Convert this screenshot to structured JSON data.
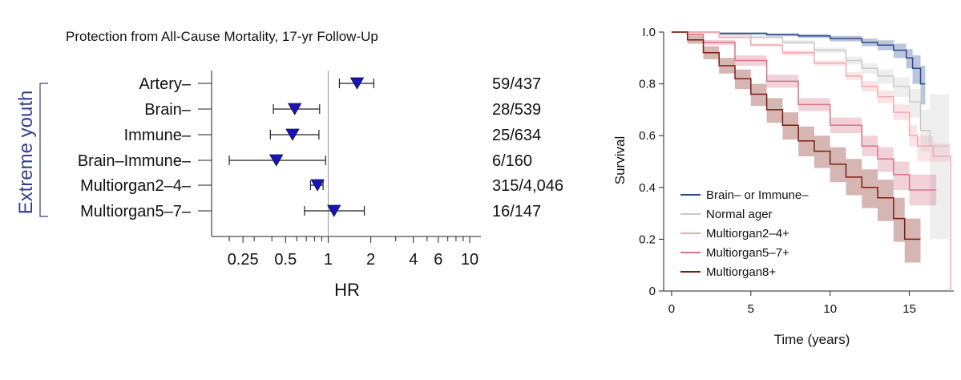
{
  "figure": {
    "left_panel": {
      "title": "Protection from All-Cause Mortality, 17-yr Follow-Up",
      "group_label": "Extreme youth",
      "xlabel": "HR"
    },
    "right_panel": {
      "xlabel": "Time (years)",
      "ylabel": "Survival"
    }
  },
  "colors": {
    "marker": "#1a13b8",
    "reference_line": "#9a9a9a",
    "group_bracket": "#36408c",
    "brain_immune": "#2a4a93",
    "normal_ager": "#c9c9c9",
    "multiorgan2_4": "#f0aab0",
    "multiorgan5_7": "#d77488",
    "multiorgan8": "#7d1c12"
  },
  "chart_data": [
    {
      "type": "forest",
      "title": "Protection from All-Cause Mortality, 17-yr Follow-Up",
      "xlabel": "HR",
      "xscale": "log",
      "xlim": [
        0.15,
        12
      ],
      "xticks": [
        {
          "value": 0.25,
          "label": "0.25"
        },
        {
          "value": 0.5,
          "label": "0.5"
        },
        {
          "value": 1,
          "label": "1"
        },
        {
          "value": 2,
          "label": "2"
        },
        {
          "value": 4,
          "label": "4"
        },
        {
          "value": 6,
          "label": "6"
        },
        {
          "value": 10,
          "label": "10"
        }
      ],
      "reference_value": 1,
      "rows": [
        {
          "label": "Artery–",
          "hr": 1.6,
          "ci_low": 1.2,
          "ci_high": 2.1,
          "counts": "59/437"
        },
        {
          "label": "Brain–",
          "hr": 0.58,
          "ci_low": 0.41,
          "ci_high": 0.87,
          "counts": "28/539"
        },
        {
          "label": "Immune–",
          "hr": 0.56,
          "ci_low": 0.39,
          "ci_high": 0.86,
          "counts": "25/634"
        },
        {
          "label": "Brain–Immune–",
          "hr": 0.43,
          "ci_low": 0.2,
          "ci_high": 0.96,
          "counts": "6/160"
        },
        {
          "label": "Multiorgan2–4–",
          "hr": 0.84,
          "ci_low": 0.75,
          "ci_high": 0.92,
          "counts": "315/4,046"
        },
        {
          "label": "Multiorgan5–7–",
          "hr": 1.1,
          "ci_low": 0.68,
          "ci_high": 1.8,
          "counts": "16/147"
        }
      ]
    },
    {
      "type": "line",
      "subtype": "kaplan-meier",
      "xlabel": "Time (years)",
      "ylabel": "Survival",
      "xlim": [
        -0.5,
        17.8
      ],
      "ylim": [
        0,
        1.0
      ],
      "xticks": [
        0,
        5,
        10,
        15
      ],
      "yticks": [
        {
          "value": 0,
          "label": "0"
        },
        {
          "value": 0.2,
          "label": "0.2"
        },
        {
          "value": 0.4,
          "label": "0.4"
        },
        {
          "value": 0.6,
          "label": "0.6"
        },
        {
          "value": 0.8,
          "label": "0.8"
        },
        {
          "value": 1.0,
          "label": "I.0"
        }
      ],
      "legend_position": "bottom-left",
      "series": [
        {
          "name": "Brain– or Immune–",
          "color": "#2a4a93",
          "x": [
            0,
            1,
            3,
            6,
            8,
            10,
            12,
            13,
            14,
            14.8,
            15.2,
            15.7,
            16
          ],
          "y": [
            1.0,
            1.0,
            0.995,
            0.99,
            0.985,
            0.975,
            0.96,
            0.95,
            0.93,
            0.9,
            0.86,
            0.8,
            0.8
          ],
          "lower": [
            1.0,
            0.998,
            0.99,
            0.984,
            0.977,
            0.964,
            0.945,
            0.93,
            0.9,
            0.86,
            0.8,
            0.72,
            0.72
          ],
          "upper": [
            1.0,
            1.0,
            0.999,
            0.995,
            0.992,
            0.985,
            0.975,
            0.968,
            0.955,
            0.935,
            0.91,
            0.87,
            0.87
          ]
        },
        {
          "name": "Normal ager",
          "color": "#c9c9c9",
          "x": [
            0,
            1,
            3,
            5,
            7,
            9,
            11,
            12,
            13,
            14,
            15,
            15.7,
            16.3,
            17.5
          ],
          "y": [
            1.0,
            1.0,
            0.99,
            0.98,
            0.96,
            0.93,
            0.89,
            0.86,
            0.83,
            0.79,
            0.73,
            0.62,
            0.56,
            0.56
          ],
          "lower": [
            1.0,
            0.998,
            0.986,
            0.975,
            0.953,
            0.92,
            0.875,
            0.84,
            0.8,
            0.75,
            0.67,
            0.54,
            0.2,
            0.2
          ],
          "upper": [
            1.0,
            1.0,
            0.994,
            0.986,
            0.968,
            0.94,
            0.905,
            0.88,
            0.855,
            0.825,
            0.78,
            0.7,
            0.76,
            0.76
          ]
        },
        {
          "name": "Multiorgan2–4+",
          "color": "#f0aab0",
          "x": [
            0,
            1,
            3,
            5,
            7,
            9,
            11,
            12,
            13,
            14,
            15,
            15.5,
            16.5,
            17.6
          ],
          "y": [
            1.0,
            0.998,
            0.98,
            0.95,
            0.92,
            0.88,
            0.83,
            0.79,
            0.75,
            0.69,
            0.6,
            0.56,
            0.52,
            0.0
          ],
          "lower": [
            1.0,
            0.996,
            0.975,
            0.944,
            0.91,
            0.87,
            0.815,
            0.77,
            0.725,
            0.66,
            0.56,
            0.5,
            0.5,
            0.0
          ],
          "upper": [
            1.0,
            1.0,
            0.985,
            0.957,
            0.93,
            0.89,
            0.845,
            0.81,
            0.775,
            0.72,
            0.64,
            0.6,
            0.57,
            0.0
          ]
        },
        {
          "name": "Multiorgan5–7+",
          "color": "#d77488",
          "x": [
            0,
            1,
            2,
            4,
            6,
            8,
            10,
            12,
            13,
            14,
            15,
            15.7,
            16.7
          ],
          "y": [
            1.0,
            0.99,
            0.96,
            0.89,
            0.81,
            0.72,
            0.64,
            0.56,
            0.51,
            0.45,
            0.39,
            0.39,
            0.39
          ],
          "lower": [
            1.0,
            0.985,
            0.95,
            0.87,
            0.785,
            0.695,
            0.61,
            0.52,
            0.46,
            0.39,
            0.33,
            0.33,
            0.33
          ],
          "upper": [
            1.0,
            0.995,
            0.97,
            0.91,
            0.835,
            0.745,
            0.67,
            0.6,
            0.555,
            0.5,
            0.45,
            0.45,
            0.45
          ]
        },
        {
          "name": "Multiorgan8+",
          "color": "#7d1c12",
          "x": [
            0,
            1,
            2,
            3,
            4,
            5,
            6,
            7,
            8,
            9,
            10,
            11,
            12,
            13,
            14,
            14.7,
            15.7
          ],
          "y": [
            1.0,
            0.97,
            0.92,
            0.87,
            0.82,
            0.76,
            0.7,
            0.64,
            0.58,
            0.54,
            0.49,
            0.44,
            0.4,
            0.36,
            0.28,
            0.2,
            0.2
          ],
          "lower": [
            1.0,
            0.955,
            0.895,
            0.84,
            0.78,
            0.715,
            0.65,
            0.585,
            0.52,
            0.475,
            0.42,
            0.37,
            0.32,
            0.27,
            0.19,
            0.11,
            0.11
          ],
          "upper": [
            1.0,
            0.985,
            0.945,
            0.9,
            0.855,
            0.8,
            0.745,
            0.69,
            0.635,
            0.6,
            0.555,
            0.51,
            0.47,
            0.43,
            0.36,
            0.28,
            0.28
          ]
        }
      ]
    }
  ]
}
